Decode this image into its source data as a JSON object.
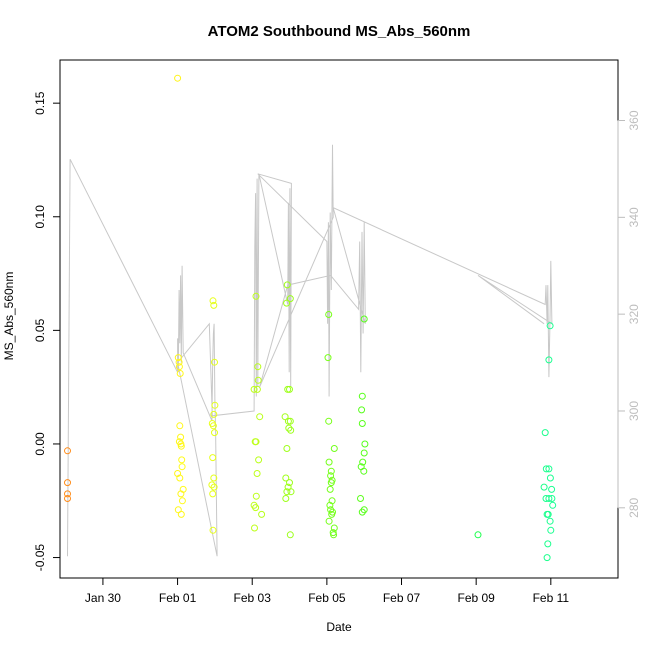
{
  "chart_data": {
    "type": "scatter",
    "title": "ATOM2 Southbound MS_Abs_560nm",
    "xlabel": "Date",
    "ylabel": "MS_Abs_560nm",
    "x_ticks": [
      "Jan 30",
      "Feb 01",
      "Feb 03",
      "Feb 05",
      "Feb 07",
      "Feb 09",
      "Feb 11"
    ],
    "x_tick_days": [
      -2,
      0,
      2,
      4,
      6,
      8,
      10
    ],
    "y_ticks": [
      "-0.05",
      "0.00",
      "0.05",
      "0.10",
      "0.15"
    ],
    "y_tick_values": [
      -0.05,
      0,
      0.05,
      0.1,
      0.15
    ],
    "y2_ticks": [
      "280",
      "300",
      "320",
      "340",
      "360"
    ],
    "y2_tick_values": [
      280,
      300,
      320,
      340,
      360
    ],
    "xlim_days": [
      -3.15,
      11.8
    ],
    "ylim": [
      -0.059,
      0.169
    ],
    "y2lim": [
      265.5,
      372.5
    ],
    "points": [
      {
        "day": -2.95,
        "y": -0.003
      },
      {
        "day": -2.95,
        "y": -0.017
      },
      {
        "day": -2.95,
        "y": -0.022
      },
      {
        "day": -2.95,
        "y": -0.024
      },
      {
        "day": 0.0,
        "y": 0.161
      },
      {
        "day": 0.02,
        "y": 0.038
      },
      {
        "day": 0.04,
        "y": 0.036
      },
      {
        "day": 0.05,
        "y": 0.034
      },
      {
        "day": 0.07,
        "y": 0.031
      },
      {
        "day": 0.06,
        "y": 0.008
      },
      {
        "day": 0.08,
        "y": 0.003
      },
      {
        "day": 0.05,
        "y": 0.001
      },
      {
        "day": 0.09,
        "y": 0.0
      },
      {
        "day": 0.1,
        "y": -0.001
      },
      {
        "day": 0.11,
        "y": -0.007
      },
      {
        "day": 0.12,
        "y": -0.01
      },
      {
        "day": 0.0,
        "y": -0.013
      },
      {
        "day": 0.06,
        "y": -0.015
      },
      {
        "day": 0.15,
        "y": -0.02
      },
      {
        "day": 0.09,
        "y": -0.022
      },
      {
        "day": 0.13,
        "y": -0.025
      },
      {
        "day": 0.02,
        "y": -0.029
      },
      {
        "day": 0.1,
        "y": -0.031
      },
      {
        "day": 0.95,
        "y": 0.063
      },
      {
        "day": 0.97,
        "y": 0.061
      },
      {
        "day": 0.99,
        "y": 0.036
      },
      {
        "day": 1.0,
        "y": 0.017
      },
      {
        "day": 0.97,
        "y": 0.013
      },
      {
        "day": 0.93,
        "y": 0.009
      },
      {
        "day": 0.96,
        "y": 0.008
      },
      {
        "day": 0.99,
        "y": 0.005
      },
      {
        "day": 0.94,
        "y": -0.006
      },
      {
        "day": 0.97,
        "y": -0.015
      },
      {
        "day": 0.92,
        "y": -0.018
      },
      {
        "day": 0.98,
        "y": -0.019
      },
      {
        "day": 0.94,
        "y": -0.022
      },
      {
        "day": 0.95,
        "y": -0.038
      },
      {
        "day": 2.1,
        "y": 0.065
      },
      {
        "day": 2.15,
        "y": 0.034
      },
      {
        "day": 2.16,
        "y": 0.028
      },
      {
        "day": 2.05,
        "y": 0.024
      },
      {
        "day": 2.14,
        "y": 0.024
      },
      {
        "day": 2.2,
        "y": 0.012
      },
      {
        "day": 2.08,
        "y": 0.001
      },
      {
        "day": 2.1,
        "y": 0.001
      },
      {
        "day": 2.17,
        "y": -0.007
      },
      {
        "day": 2.13,
        "y": -0.013
      },
      {
        "day": 2.11,
        "y": -0.023
      },
      {
        "day": 2.05,
        "y": -0.027
      },
      {
        "day": 2.09,
        "y": -0.028
      },
      {
        "day": 2.25,
        "y": -0.031
      },
      {
        "day": 2.06,
        "y": -0.037
      },
      {
        "day": 2.94,
        "y": 0.07
      },
      {
        "day": 3.02,
        "y": 0.064
      },
      {
        "day": 2.92,
        "y": 0.062
      },
      {
        "day": 2.95,
        "y": 0.024
      },
      {
        "day": 3.0,
        "y": 0.024
      },
      {
        "day": 2.88,
        "y": 0.012
      },
      {
        "day": 2.97,
        "y": 0.01
      },
      {
        "day": 3.02,
        "y": 0.01
      },
      {
        "day": 2.98,
        "y": 0.007
      },
      {
        "day": 3.03,
        "y": 0.006
      },
      {
        "day": 2.93,
        "y": -0.002
      },
      {
        "day": 2.9,
        "y": -0.015
      },
      {
        "day": 3.0,
        "y": -0.017
      },
      {
        "day": 2.96,
        "y": -0.019
      },
      {
        "day": 2.93,
        "y": -0.021
      },
      {
        "day": 3.04,
        "y": -0.021
      },
      {
        "day": 2.9,
        "y": -0.024
      },
      {
        "day": 3.02,
        "y": -0.04
      },
      {
        "day": 4.05,
        "y": 0.057
      },
      {
        "day": 4.03,
        "y": 0.038
      },
      {
        "day": 4.05,
        "y": 0.01
      },
      {
        "day": 4.2,
        "y": -0.002
      },
      {
        "day": 4.06,
        "y": -0.008
      },
      {
        "day": 4.12,
        "y": -0.012
      },
      {
        "day": 4.1,
        "y": -0.014
      },
      {
        "day": 4.14,
        "y": -0.016
      },
      {
        "day": 4.12,
        "y": -0.017
      },
      {
        "day": 4.09,
        "y": -0.02
      },
      {
        "day": 4.14,
        "y": -0.025
      },
      {
        "day": 4.08,
        "y": -0.027
      },
      {
        "day": 4.1,
        "y": -0.029
      },
      {
        "day": 4.15,
        "y": -0.03
      },
      {
        "day": 4.13,
        "y": -0.031
      },
      {
        "day": 4.06,
        "y": -0.034
      },
      {
        "day": 4.2,
        "y": -0.037
      },
      {
        "day": 4.17,
        "y": -0.039
      },
      {
        "day": 4.18,
        "y": -0.04
      },
      {
        "day": 5.0,
        "y": 0.055
      },
      {
        "day": 4.95,
        "y": 0.021
      },
      {
        "day": 4.93,
        "y": 0.015
      },
      {
        "day": 4.95,
        "y": 0.009
      },
      {
        "day": 5.02,
        "y": 0.0
      },
      {
        "day": 5.0,
        "y": -0.004
      },
      {
        "day": 4.96,
        "y": -0.008
      },
      {
        "day": 4.92,
        "y": -0.01
      },
      {
        "day": 4.99,
        "y": -0.012
      },
      {
        "day": 4.9,
        "y": -0.024
      },
      {
        "day": 5.0,
        "y": -0.029
      },
      {
        "day": 4.95,
        "y": -0.03
      },
      {
        "day": 8.05,
        "y": -0.04
      },
      {
        "day": 9.85,
        "y": 0.005
      },
      {
        "day": 9.88,
        "y": -0.011
      },
      {
        "day": 9.95,
        "y": -0.011
      },
      {
        "day": 9.99,
        "y": -0.015
      },
      {
        "day": 9.82,
        "y": -0.019
      },
      {
        "day": 10.02,
        "y": -0.02
      },
      {
        "day": 9.87,
        "y": -0.024
      },
      {
        "day": 9.95,
        "y": -0.024
      },
      {
        "day": 10.03,
        "y": -0.024
      },
      {
        "day": 10.05,
        "y": -0.027
      },
      {
        "day": 9.93,
        "y": -0.031
      },
      {
        "day": 9.9,
        "y": -0.031
      },
      {
        "day": 9.98,
        "y": -0.034
      },
      {
        "day": 10.0,
        "y": -0.038
      },
      {
        "day": 9.92,
        "y": -0.044
      },
      {
        "day": 9.9,
        "y": -0.05
      },
      {
        "day": 9.95,
        "y": 0.037
      },
      {
        "day": 9.98,
        "y": 0.052
      }
    ],
    "line_series": [
      [
        -2.95,
        270
      ],
      [
        -2.88,
        352
      ],
      [
        0.0,
        308
      ],
      [
        0.0,
        315
      ],
      [
        0.02,
        308
      ],
      [
        0.04,
        325
      ],
      [
        0.06,
        314
      ],
      [
        0.08,
        328
      ],
      [
        0.1,
        310
      ],
      [
        0.12,
        330
      ],
      [
        0.15,
        312
      ],
      [
        0.92,
        298
      ],
      [
        0.94,
        310
      ],
      [
        0.96,
        316
      ],
      [
        0.98,
        318
      ],
      [
        1.0,
        302
      ],
      [
        1.02,
        296
      ],
      [
        1.06,
        270
      ],
      [
        0.0,
        310
      ],
      [
        0.85,
        318
      ],
      [
        0.93,
        299
      ],
      [
        2.05,
        300
      ],
      [
        2.07,
        334
      ],
      [
        2.09,
        345
      ],
      [
        2.11,
        303
      ],
      [
        2.13,
        348
      ],
      [
        2.15,
        305
      ],
      [
        2.18,
        349
      ],
      [
        2.95,
        322
      ],
      [
        2.97,
        343
      ],
      [
        2.99,
        308
      ],
      [
        3.01,
        346
      ],
      [
        3.03,
        305
      ],
      [
        3.05,
        347
      ],
      [
        2.15,
        349
      ],
      [
        4.0,
        335
      ],
      [
        4.02,
        318
      ],
      [
        4.04,
        339
      ],
      [
        4.06,
        303
      ],
      [
        4.09,
        341
      ],
      [
        4.12,
        325
      ],
      [
        4.15,
        355
      ],
      [
        4.17,
        340
      ],
      [
        2.2,
        305
      ],
      [
        2.95,
        326
      ],
      [
        4.1,
        328
      ],
      [
        4.85,
        321
      ],
      [
        4.88,
        335
      ],
      [
        4.91,
        308
      ],
      [
        4.94,
        337
      ],
      [
        4.97,
        316
      ],
      [
        5.0,
        339
      ],
      [
        5.03,
        318
      ],
      [
        4.17,
        342
      ],
      [
        9.85,
        322
      ],
      [
        9.85,
        322
      ],
      [
        9.87,
        326
      ],
      [
        9.9,
        318
      ],
      [
        9.92,
        326
      ],
      [
        9.95,
        307
      ],
      [
        9.98,
        320
      ],
      [
        10.0,
        331
      ],
      [
        10.03,
        318
      ],
      [
        8.05,
        328
      ],
      [
        9.82,
        318
      ]
    ]
  }
}
